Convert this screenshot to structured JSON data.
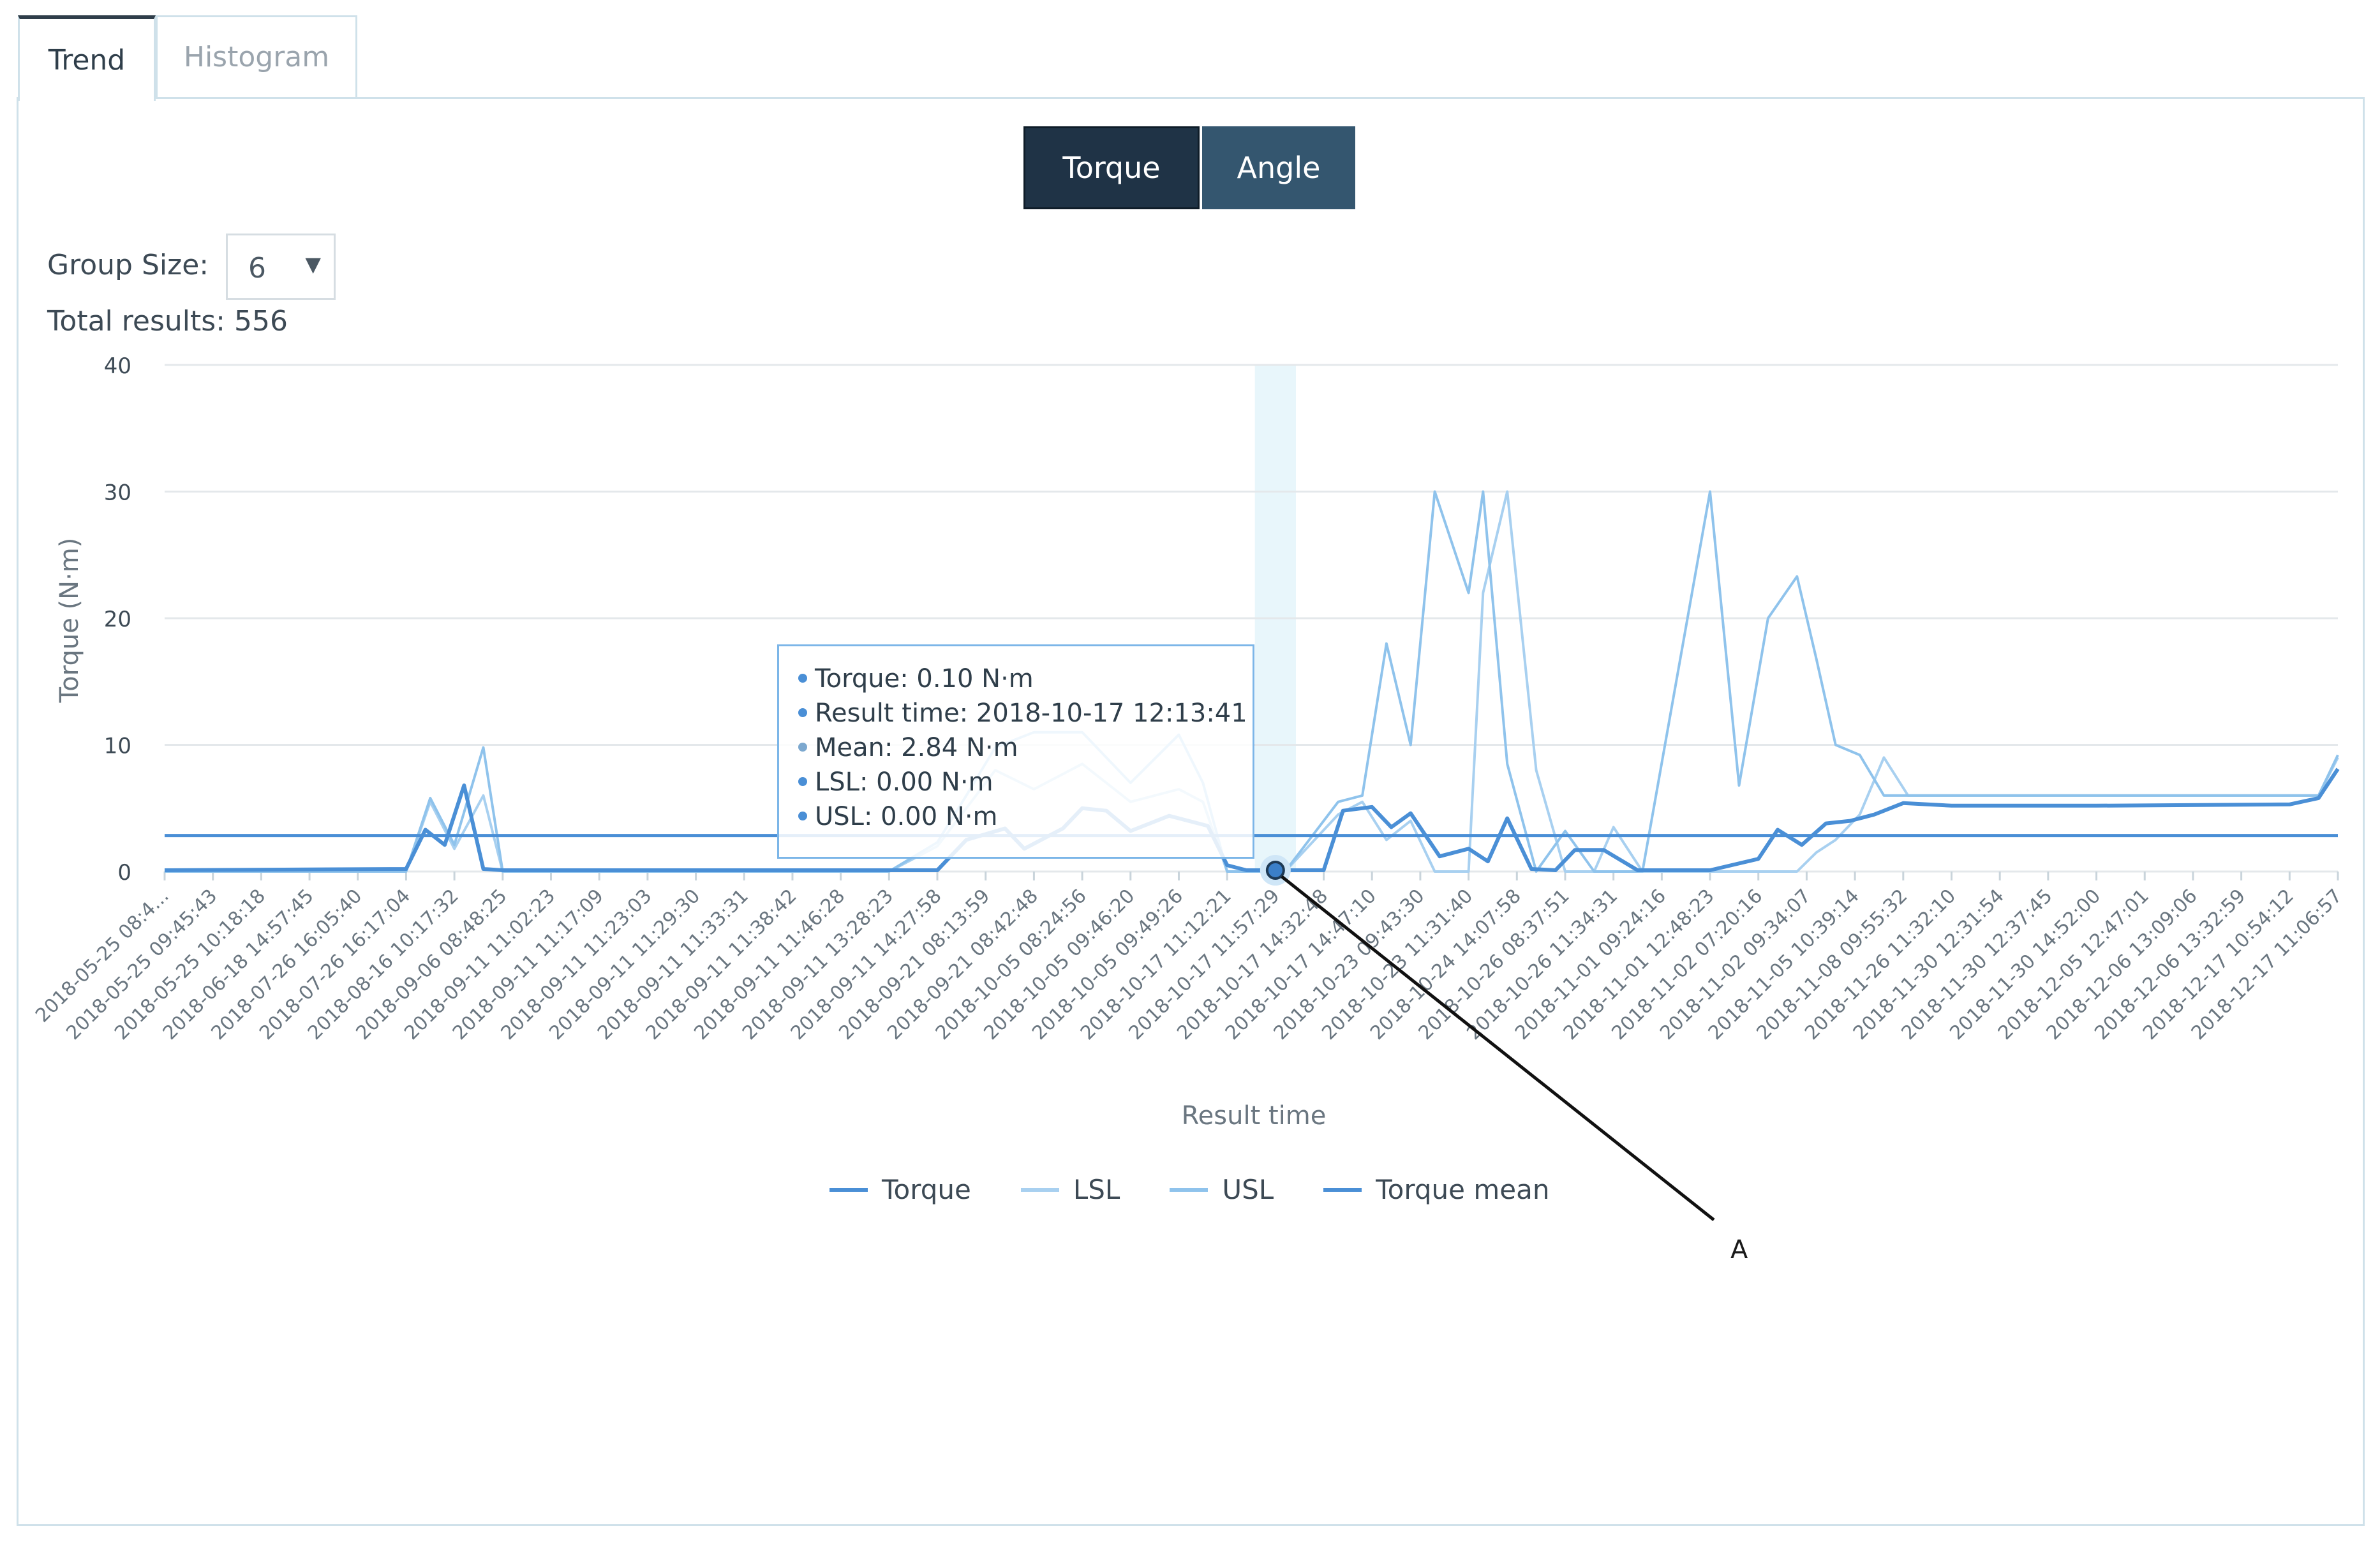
{
  "tabs": [
    {
      "label": "Trend",
      "active": true
    },
    {
      "label": "Histogram",
      "active": false
    }
  ],
  "toggle": {
    "torque_label": "Torque",
    "angle_label": "Angle",
    "selected": "Torque"
  },
  "group_size": {
    "label": "Group Size:",
    "value": "6"
  },
  "total_results": "Total results: 556",
  "tooltip": {
    "torque": "Torque: 0.10 N·m",
    "result_time": "Result time: 2018-10-17 12:13:41",
    "mean": "Mean: 2.84 N·m",
    "lsl": "LSL: 0.00 N·m",
    "usl": "USL: 0.00 N·m"
  },
  "callout": {
    "label": "A"
  },
  "colors": {
    "torque": "#4a8fd6",
    "lsl": "#a8d0f0",
    "usl": "#8fc3ec",
    "torque_mean": "#4a8fd6",
    "highlight_band": "#e8f6fb",
    "dark_button": "#1f3346",
    "angle_button": "#34566f"
  },
  "chart_data": {
    "type": "line",
    "title": "",
    "xlabel": "Result time",
    "ylabel": "Torque (N·m)",
    "ylim": [
      0,
      40
    ],
    "yticks": [
      0,
      10,
      20,
      30,
      40
    ],
    "grid": true,
    "legend": "bottom-center",
    "categories": [
      "2018-05-25 08:4...",
      "2018-05-25 09:45:43",
      "2018-05-25 10:18:18",
      "2018-06-18 14:57:45",
      "2018-07-26 16:05:40",
      "2018-07-26 16:17:04",
      "2018-08-16 10:17:32",
      "2018-09-06 08:48:25",
      "2018-09-11 11:02:23",
      "2018-09-11 11:17:09",
      "2018-09-11 11:23:03",
      "2018-09-11 11:29:30",
      "2018-09-11 11:33:31",
      "2018-09-11 11:38:42",
      "2018-09-11 11:46:28",
      "2018-09-11 13:28:23",
      "2018-09-11 14:27:58",
      "2018-09-21 08:13:59",
      "2018-09-21 08:42:48",
      "2018-10-05 08:24:56",
      "2018-10-05 09:46:20",
      "2018-10-05 09:49:26",
      "2018-10-17 11:12:21",
      "2018-10-17 11:57:29",
      "2018-10-17 14:32:48",
      "2018-10-17 14:47:10",
      "2018-10-23 09:43:30",
      "2018-10-23 11:31:40",
      "2018-10-24 14:07:58",
      "2018-10-26 08:37:51",
      "2018-10-26 11:34:31",
      "2018-11-01 09:24:16",
      "2018-11-01 12:48:23",
      "2018-11-02 07:20:16",
      "2018-11-02 09:34:07",
      "2018-11-05 10:39:14",
      "2018-11-08 09:55:32",
      "2018-11-26 11:32:10",
      "2018-11-30 12:31:54",
      "2018-11-30 12:37:45",
      "2018-11-30 14:52:00",
      "2018-12-05 12:47:01",
      "2018-12-06 13:09:06",
      "2018-12-06 13:32:59",
      "2018-12-17 10:54:12",
      "2018-12-17 11:06:57"
    ],
    "series": [
      {
        "name": "Torque",
        "x": [
          0,
          5,
          5.4,
          5.8,
          6.2,
          6.6,
          7,
          7.5,
          8,
          15,
          16,
          16.6,
          17.4,
          17.8,
          18.6,
          19,
          19.5,
          20,
          20.8,
          21.6,
          22,
          22.4,
          23,
          24,
          24.4,
          25,
          25.4,
          25.8,
          26.4,
          27,
          27.4,
          27.8,
          28.3,
          28.8,
          29.2,
          29.8,
          30.5,
          31,
          32,
          33,
          33.4,
          33.9,
          34.4,
          34.9,
          35.4,
          36,
          37,
          40,
          44,
          44.6,
          45
        ],
        "values": [
          0.1,
          0.2,
          3.3,
          2.1,
          6.8,
          0.2,
          0.1,
          0.1,
          0.1,
          0.1,
          0.1,
          2.5,
          3.4,
          1.8,
          3.4,
          5.0,
          4.8,
          3.2,
          4.4,
          3.6,
          0.5,
          0.1,
          0.1,
          0.1,
          4.8,
          5.1,
          3.5,
          4.6,
          1.2,
          1.8,
          0.8,
          4.2,
          0.2,
          0.1,
          1.7,
          1.7,
          0.1,
          0.1,
          0.1,
          1.0,
          3.3,
          2.1,
          3.8,
          4.0,
          4.5,
          5.4,
          5.2,
          5.2,
          5.3,
          5.8,
          8.1
        ]
      },
      {
        "name": "LSL",
        "x": [
          0,
          5,
          5.5,
          6,
          6.6,
          7,
          15,
          16,
          16.6,
          17.2,
          18,
          19,
          20,
          21,
          21.5,
          22,
          22.8,
          23.2,
          24.3,
          24.8,
          25.3,
          25.8,
          26.3,
          27,
          27.3,
          27.8,
          28.4,
          29,
          29.6,
          30,
          30.6,
          32,
          32.6,
          33.2,
          33.8,
          34.2,
          34.6,
          35.1,
          35.6,
          36.1,
          44.6,
          45
        ],
        "values": [
          0,
          0,
          5.5,
          1.8,
          6.0,
          0,
          0,
          2.0,
          5.0,
          8.0,
          6.5,
          8.5,
          5.5,
          6.5,
          5.5,
          0,
          0,
          0,
          4.5,
          5.5,
          2.5,
          4.0,
          0,
          0,
          22,
          30,
          8.0,
          0,
          0,
          3.5,
          0,
          0,
          0,
          0,
          0,
          1.5,
          2.5,
          4.5,
          9.0,
          6.0,
          6.0,
          9.0
        ]
      },
      {
        "name": "USL",
        "x": [
          0,
          5,
          5.5,
          6,
          6.6,
          7,
          15,
          16,
          16.6,
          17.2,
          18,
          19,
          20,
          21,
          21.5,
          22,
          22.8,
          23.2,
          24.3,
          24.8,
          25.3,
          25.8,
          26.3,
          27,
          27.3,
          27.8,
          28.4,
          29,
          29.6,
          30,
          30.6,
          32,
          32.6,
          33.2,
          33.8,
          34.2,
          34.6,
          35.1,
          35.6,
          36.1,
          44.6,
          45
        ],
        "values": [
          0,
          0,
          5.8,
          2.1,
          9.8,
          0,
          0,
          2.3,
          6.0,
          9.8,
          11.0,
          11.0,
          7.0,
          10.8,
          7.0,
          0,
          0,
          0,
          5.5,
          6.0,
          18.0,
          10.0,
          30,
          22,
          30,
          8.5,
          0,
          3.2,
          0,
          0,
          0,
          30,
          6.8,
          20.0,
          23.3,
          16.8,
          10.0,
          9.2,
          6.0,
          6.0,
          6.0,
          9.2
        ]
      },
      {
        "name": "Torque mean",
        "x": [
          0,
          45
        ],
        "values": [
          2.84,
          2.84
        ]
      }
    ],
    "highlighted_category": "2018-10-17 11:57:29"
  }
}
